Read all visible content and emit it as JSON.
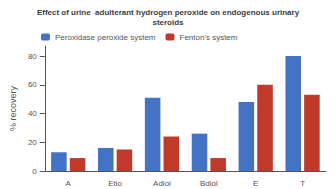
{
  "chart_data": {
    "type": "bar",
    "title": "Effect of urine  adulterant hydrogen peroxide on endogenous urinary\nsteroids",
    "categories": [
      "A",
      "Etio",
      "Adiol",
      "Bdiol",
      "E",
      "T"
    ],
    "series": [
      {
        "name": "Peroxidase peroxide system",
        "color": "#4472C4",
        "values": [
          13,
          16,
          51,
          26,
          48,
          80
        ]
      },
      {
        "name": "Fenton's system",
        "color": "#C0392B",
        "values": [
          9,
          15,
          24,
          9,
          60,
          53
        ]
      }
    ],
    "ylabel": "% recovery",
    "ylim": [
      0,
      87
    ],
    "yticks": [
      0,
      20,
      40,
      60,
      80
    ],
    "grid": false,
    "legend": "upper left"
  }
}
